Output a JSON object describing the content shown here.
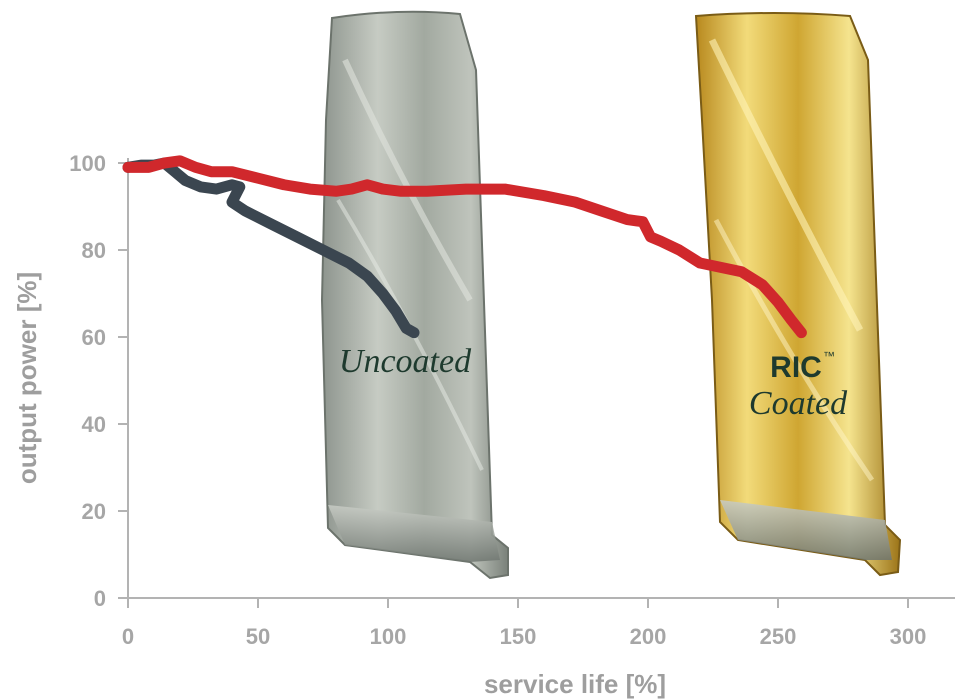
{
  "chart_data": {
    "type": "line",
    "xlabel": "service life [%]",
    "ylabel": "output power [%]",
    "xlim": [
      0,
      320
    ],
    "ylim": [
      0,
      100
    ],
    "x_ticks": [
      "0",
      "50",
      "100",
      "150",
      "200",
      "250",
      "300"
    ],
    "y_ticks": [
      "0",
      "20",
      "40",
      "60",
      "80",
      "100"
    ],
    "grid": false,
    "annotations": {
      "uncoated": "Uncoated",
      "ric": "RIC",
      "ric_tm": "™",
      "coated": "Coated"
    },
    "series": [
      {
        "key": "uncoated",
        "color": "#3b4650",
        "points": [
          [
            0,
            99
          ],
          [
            5,
            99.5
          ],
          [
            10,
            99.5
          ],
          [
            14,
            100
          ],
          [
            18,
            98
          ],
          [
            22,
            96
          ],
          [
            28,
            94.5
          ],
          [
            34,
            94
          ],
          [
            40,
            95
          ],
          [
            43,
            94.5
          ],
          [
            40,
            91
          ],
          [
            45,
            89
          ],
          [
            55,
            86
          ],
          [
            65,
            83
          ],
          [
            75,
            80
          ],
          [
            85,
            77
          ],
          [
            92,
            74
          ],
          [
            98,
            70
          ],
          [
            103,
            66
          ],
          [
            107,
            62
          ],
          [
            110,
            61
          ]
        ]
      },
      {
        "key": "ric_coated",
        "color": "#d0282c",
        "points": [
          [
            0,
            99
          ],
          [
            8,
            99
          ],
          [
            14,
            100
          ],
          [
            20,
            100.5
          ],
          [
            26,
            99
          ],
          [
            32,
            98
          ],
          [
            40,
            98
          ],
          [
            50,
            96.5
          ],
          [
            60,
            95
          ],
          [
            70,
            94
          ],
          [
            80,
            93.5
          ],
          [
            86,
            94
          ],
          [
            92,
            95
          ],
          [
            98,
            94
          ],
          [
            105,
            93.5
          ],
          [
            115,
            93.5
          ],
          [
            130,
            94
          ],
          [
            145,
            94
          ],
          [
            160,
            92.5
          ],
          [
            172,
            91
          ],
          [
            182,
            89
          ],
          [
            192,
            87
          ],
          [
            198,
            86.5
          ],
          [
            201,
            83
          ],
          [
            205,
            82
          ],
          [
            212,
            80
          ],
          [
            220,
            77
          ],
          [
            228,
            76
          ],
          [
            236,
            75
          ],
          [
            244,
            72
          ],
          [
            250,
            68
          ],
          [
            255,
            64
          ],
          [
            259,
            61
          ]
        ]
      }
    ]
  },
  "image_elements": [
    {
      "name": "uncoated-turbine-blade",
      "color": "#a6aca4"
    },
    {
      "name": "coated-turbine-blade",
      "color": "#d9b53a"
    }
  ]
}
